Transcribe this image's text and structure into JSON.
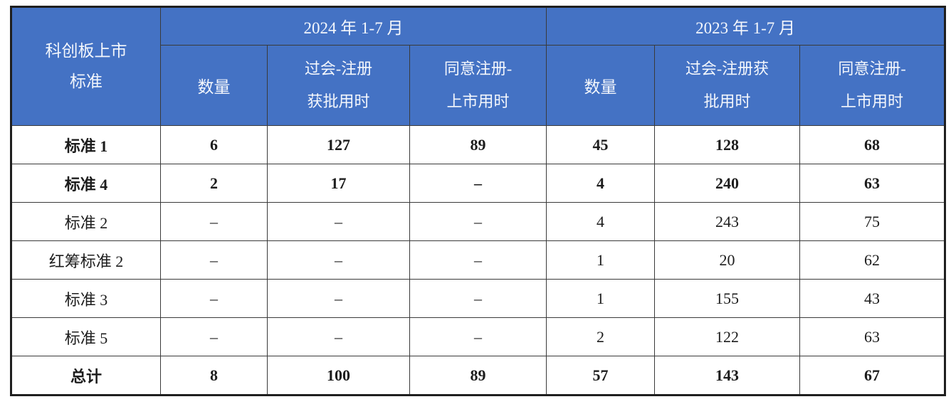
{
  "table": {
    "header": {
      "corner_line1": "科创板上市",
      "corner_line2": "标准",
      "group_2024": "2024 年 1-7 月",
      "group_2023": "2023 年 1-7 月",
      "sub_2024_count": "数量",
      "sub_2024_approval_line1": "过会-注册",
      "sub_2024_approval_line2": "获批用时",
      "sub_2024_listing_line1": "同意注册-",
      "sub_2024_listing_line2": "上市用时",
      "sub_2023_count": "数量",
      "sub_2023_approval_line1": "过会-注册获",
      "sub_2023_approval_line2": "批用时",
      "sub_2023_listing_line1": "同意注册-",
      "sub_2023_listing_line2": "上市用时"
    },
    "rows": [
      {
        "label": "标准 1",
        "emphasis": true,
        "values": [
          "6",
          "127",
          "89",
          "45",
          "128",
          "68"
        ]
      },
      {
        "label": "标准 4",
        "emphasis": true,
        "values": [
          "2",
          "17",
          "–",
          "4",
          "240",
          "63"
        ]
      },
      {
        "label": "标准 2",
        "emphasis": false,
        "values": [
          "–",
          "–",
          "–",
          "4",
          "243",
          "75"
        ]
      },
      {
        "label": "红筹标准 2",
        "emphasis": false,
        "values": [
          "–",
          "–",
          "–",
          "1",
          "20",
          "62"
        ]
      },
      {
        "label": "标准 3",
        "emphasis": false,
        "values": [
          "–",
          "–",
          "–",
          "1",
          "155",
          "43"
        ]
      },
      {
        "label": "标准 5",
        "emphasis": false,
        "values": [
          "–",
          "–",
          "–",
          "2",
          "122",
          "63"
        ]
      },
      {
        "label": "总计",
        "emphasis": true,
        "values": [
          "8",
          "100",
          "89",
          "57",
          "143",
          "67"
        ]
      }
    ],
    "empty_placeholder": "–",
    "colors": {
      "header_bg": "#4472c4",
      "header_text": "#f4f7fc",
      "border": "#3a3a3a",
      "body_text": "#1c1c1c"
    }
  }
}
